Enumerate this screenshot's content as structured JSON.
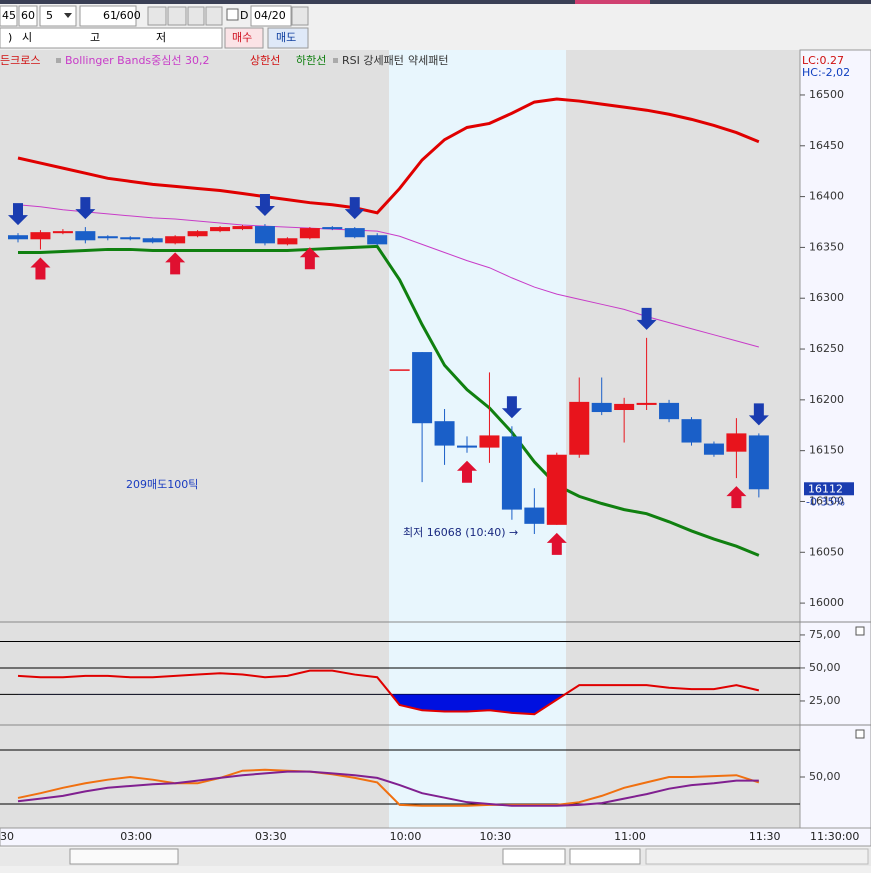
{
  "toolbar": {
    "fields": [
      "45",
      "60",
      "5",
      "61"
    ],
    "total": "/600",
    "check": "D",
    "date": "04/20"
  },
  "row2": {
    "items": [
      ")",
      "시",
      "고",
      "저"
    ],
    "buy": "매수",
    "sell": "매도"
  },
  "chart_data": [
    {
      "type": "candlestick",
      "legend_extra": [
        "든크로스",
        "RSI 강세패턴",
        "약세패턴"
      ],
      "categories": [
        null,
        null,
        null,
        null,
        null,
        "03:00",
        null,
        null,
        null,
        null,
        null,
        "03:30",
        null,
        null,
        null,
        null,
        null,
        "10:00",
        null,
        null,
        null,
        "10:30",
        null,
        null,
        null,
        null,
        null,
        "11:00",
        null,
        null,
        null,
        null,
        null,
        "11:30"
      ],
      "x_edge_label": "30",
      "x_end_label": "11:30:00",
      "open": [
        16362,
        16358,
        16364,
        16366,
        16361,
        16360,
        16359,
        16354,
        16361,
        16366,
        16368,
        16371,
        16353,
        16359,
        16370,
        16369,
        16362,
        16230,
        16247,
        16179,
        16155,
        16153,
        16164,
        16094,
        16077,
        16146,
        16197,
        16190,
        16195,
        16197,
        16181,
        16157,
        16149,
        16165
      ],
      "high": [
        16364,
        16367,
        16368,
        16370,
        16362,
        16361,
        16360,
        16362,
        16367,
        16371,
        16372,
        16373,
        16360,
        16370,
        16371,
        16370,
        16364,
        16230,
        16247,
        16191,
        16164,
        16227,
        16174,
        16113,
        16148,
        16222,
        16222,
        16202,
        16261,
        16200,
        16183,
        16159,
        16182,
        16167
      ],
      "low": [
        16355,
        16348,
        16363,
        16354,
        16357,
        16357,
        16354,
        16353,
        16360,
        16365,
        16367,
        16352,
        16352,
        16358,
        16367,
        16359,
        16352,
        16230,
        16119,
        16136,
        16148,
        16138,
        16082,
        16068,
        16077,
        16143,
        16185,
        16158,
        16190,
        16178,
        16155,
        16144,
        16123,
        16104
      ],
      "close": [
        16358,
        16365,
        16366,
        16357,
        16359,
        16358,
        16355,
        16361,
        16366,
        16370,
        16371,
        16354,
        16359,
        16369,
        16368,
        16360,
        16353,
        16230,
        16177,
        16155,
        16153,
        16165,
        16092,
        16078,
        16146,
        16198,
        16188,
        16196,
        16197,
        16181,
        16158,
        16146,
        16167,
        16112
      ],
      "series": [
        {
          "name": "Bollinger Bands중심선 30,2",
          "color": "#c83cc8",
          "values": [
            16392,
            16390,
            16387,
            16385,
            16383,
            16381,
            16379,
            16378,
            16376,
            16374,
            16372,
            16371,
            16370,
            16369,
            16368,
            16367,
            16366,
            16361,
            16353,
            16345,
            16337,
            16330,
            16320,
            16311,
            16304,
            16299,
            16294,
            16289,
            16282,
            16276,
            16270,
            16264,
            16258,
            16252
          ]
        },
        {
          "name": "상한선",
          "color": "#e00000",
          "values": [
            16438,
            16433,
            16428,
            16423,
            16418,
            16415,
            16412,
            16410,
            16408,
            16406,
            16403,
            16400,
            16397,
            16394,
            16392,
            16389,
            16384,
            16408,
            16436,
            16456,
            16468,
            16472,
            16482,
            16493,
            16496,
            16494,
            16491,
            16488,
            16485,
            16481,
            16476,
            16470,
            16463,
            16454
          ]
        },
        {
          "name": "하한선",
          "color": "#108010",
          "values": [
            16345,
            16345,
            16346,
            16347,
            16348,
            16348,
            16347,
            16347,
            16347,
            16347,
            16347,
            16347,
            16347,
            16348,
            16349,
            16350,
            16351,
            16318,
            16274,
            16234,
            16210,
            16192,
            16168,
            16139,
            16116,
            16105,
            16098,
            16092,
            16088,
            16080,
            16071,
            16063,
            16056,
            16047
          ]
        }
      ],
      "markers": {
        "down": [
          0,
          3,
          11,
          15,
          22,
          28,
          33
        ],
        "up": [
          1,
          7,
          13,
          20,
          24,
          32
        ]
      },
      "ylim": [
        15981.4,
        16522.6
      ],
      "yticks": [
        16000,
        16050,
        16100,
        16150,
        16200,
        16250,
        16300,
        16350,
        16400,
        16450,
        16500
      ],
      "last_change": "-0.35%",
      "lc": "LC:0.27",
      "hc": "HC:-2,02",
      "annotations": [
        "209매도100틱",
        "최저 16068 (10:40) →"
      ]
    },
    {
      "type": "line",
      "ylim": [
        6.8,
        84.8
      ],
      "yticks": [
        {
          "value": 75,
          "label": "75,00"
        },
        {
          "value": 50,
          "label": "50,00"
        },
        {
          "value": 25,
          "label": "25,00"
        }
      ],
      "levels": [
        70,
        50,
        30
      ],
      "fill_below": 30,
      "series": [
        {
          "color": "#e00000",
          "values": [
            44,
            43,
            43,
            44,
            44,
            43,
            43,
            44,
            45,
            46,
            45,
            43,
            44,
            48,
            48,
            45,
            43,
            22,
            18,
            17,
            17,
            18,
            16,
            15,
            26,
            37,
            37,
            37,
            37,
            35,
            34,
            34,
            37,
            33
          ]
        }
      ]
    },
    {
      "type": "line",
      "ylim": [
        -6.7,
        107.8
      ],
      "yticks": [
        {
          "value": 50,
          "label": "50,00"
        }
      ],
      "levels": [
        80,
        20
      ],
      "series": [
        {
          "color": "#f07010",
          "values": [
            26.7,
            32,
            38,
            43,
            47,
            50,
            47,
            43,
            43,
            49,
            57,
            58,
            57,
            56,
            53,
            49,
            44,
            19,
            18,
            18,
            18,
            19,
            19,
            19,
            19,
            22,
            29,
            38,
            44,
            50,
            50,
            51,
            52,
            44
          ]
        },
        {
          "color": "#802090",
          "values": [
            23,
            26,
            29,
            34,
            38,
            40,
            42,
            43,
            46,
            49,
            52,
            54,
            56,
            56,
            54,
            52,
            49,
            41,
            32,
            27,
            22,
            20,
            18,
            18,
            18,
            19,
            21,
            26,
            31,
            37,
            41,
            43,
            46,
            46
          ]
        }
      ]
    }
  ]
}
